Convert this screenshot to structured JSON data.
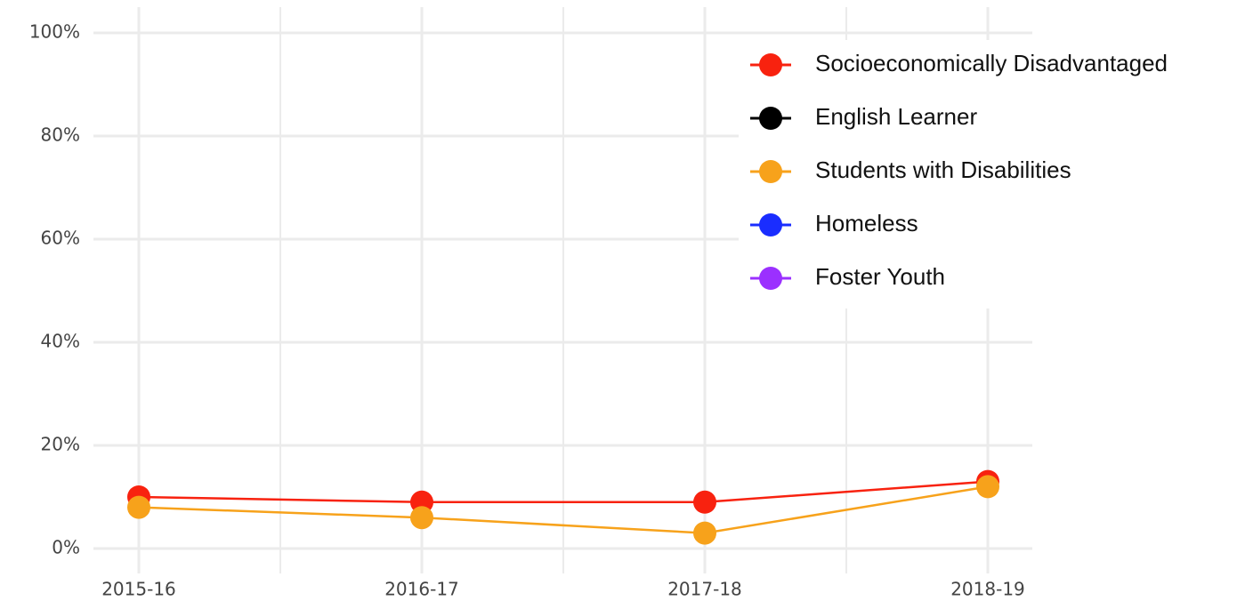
{
  "chart_data": {
    "type": "line",
    "categories": [
      "2015-16",
      "2016-17",
      "2017-18",
      "2018-19"
    ],
    "series": [
      {
        "name": "Socioeconomically Disadvantaged",
        "color": "#f8220f",
        "values": [
          10,
          9,
          9,
          13
        ]
      },
      {
        "name": "English Learner",
        "color": "#000000",
        "values": [
          null,
          null,
          null,
          null
        ]
      },
      {
        "name": "Students with Disabilities",
        "color": "#f7a21b",
        "values": [
          8,
          6,
          3,
          12
        ]
      },
      {
        "name": "Homeless",
        "color": "#1a2dff",
        "values": [
          null,
          null,
          null,
          null
        ]
      },
      {
        "name": "Foster Youth",
        "color": "#9b30ff",
        "values": [
          null,
          null,
          null,
          null
        ]
      }
    ],
    "ylim": [
      0,
      100
    ],
    "yticks": [
      {
        "value": 0,
        "label": "0%"
      },
      {
        "value": 20,
        "label": "20%"
      },
      {
        "value": 40,
        "label": "40%"
      },
      {
        "value": 60,
        "label": "60%"
      },
      {
        "value": 80,
        "label": "80%"
      },
      {
        "value": 100,
        "label": "100%"
      }
    ],
    "grid": true,
    "legend": "top-right"
  }
}
